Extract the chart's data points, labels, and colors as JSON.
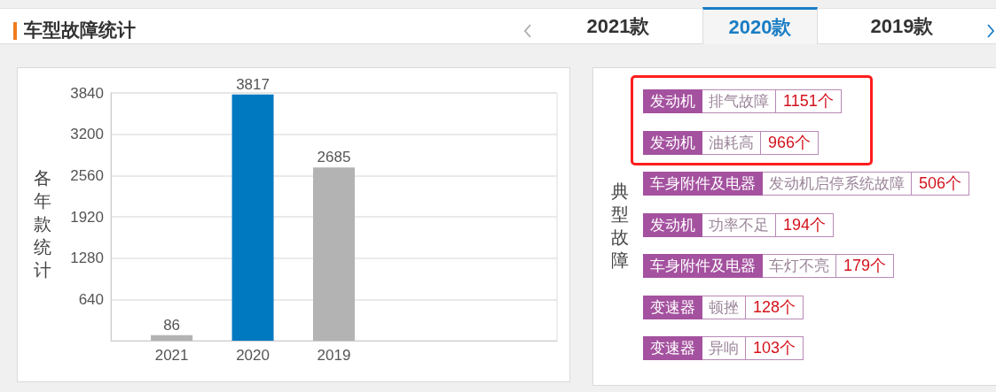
{
  "chart_data": [
    {
      "type": "bar",
      "title": "车型故障统计",
      "annotations": [
        "2021款",
        "2020款",
        "2019款"
      ],
      "ylabel": "各年款统计",
      "categories": [
        "2021",
        "2020",
        "2019"
      ],
      "values": [
        86,
        3817,
        2685
      ],
      "colors": [
        "#b3b3b3",
        "#0079c1",
        "#b3b3b3"
      ],
      "ylim": [
        0,
        3840
      ],
      "yticks": [
        640,
        1280,
        1920,
        2560,
        3200,
        3840
      ],
      "grid": "y",
      "data_labels": true
    },
    {
      "type": "other",
      "ylabel": "典型故障",
      "y_categories": [
        "发动机",
        "发动机",
        "车身附件及电器",
        "发动机",
        "车身附件及电器",
        "变速器",
        "变速器"
      ],
      "categories": [
        "排气故障",
        "油耗高",
        "发动机启停系统故障",
        "功率不足",
        "车灯不亮",
        "顿挫",
        "异响"
      ],
      "value_labels": [
        "1151个",
        "966个",
        "506个",
        "194个",
        "179个",
        "128个",
        "103个"
      ]
    }
  ]
}
